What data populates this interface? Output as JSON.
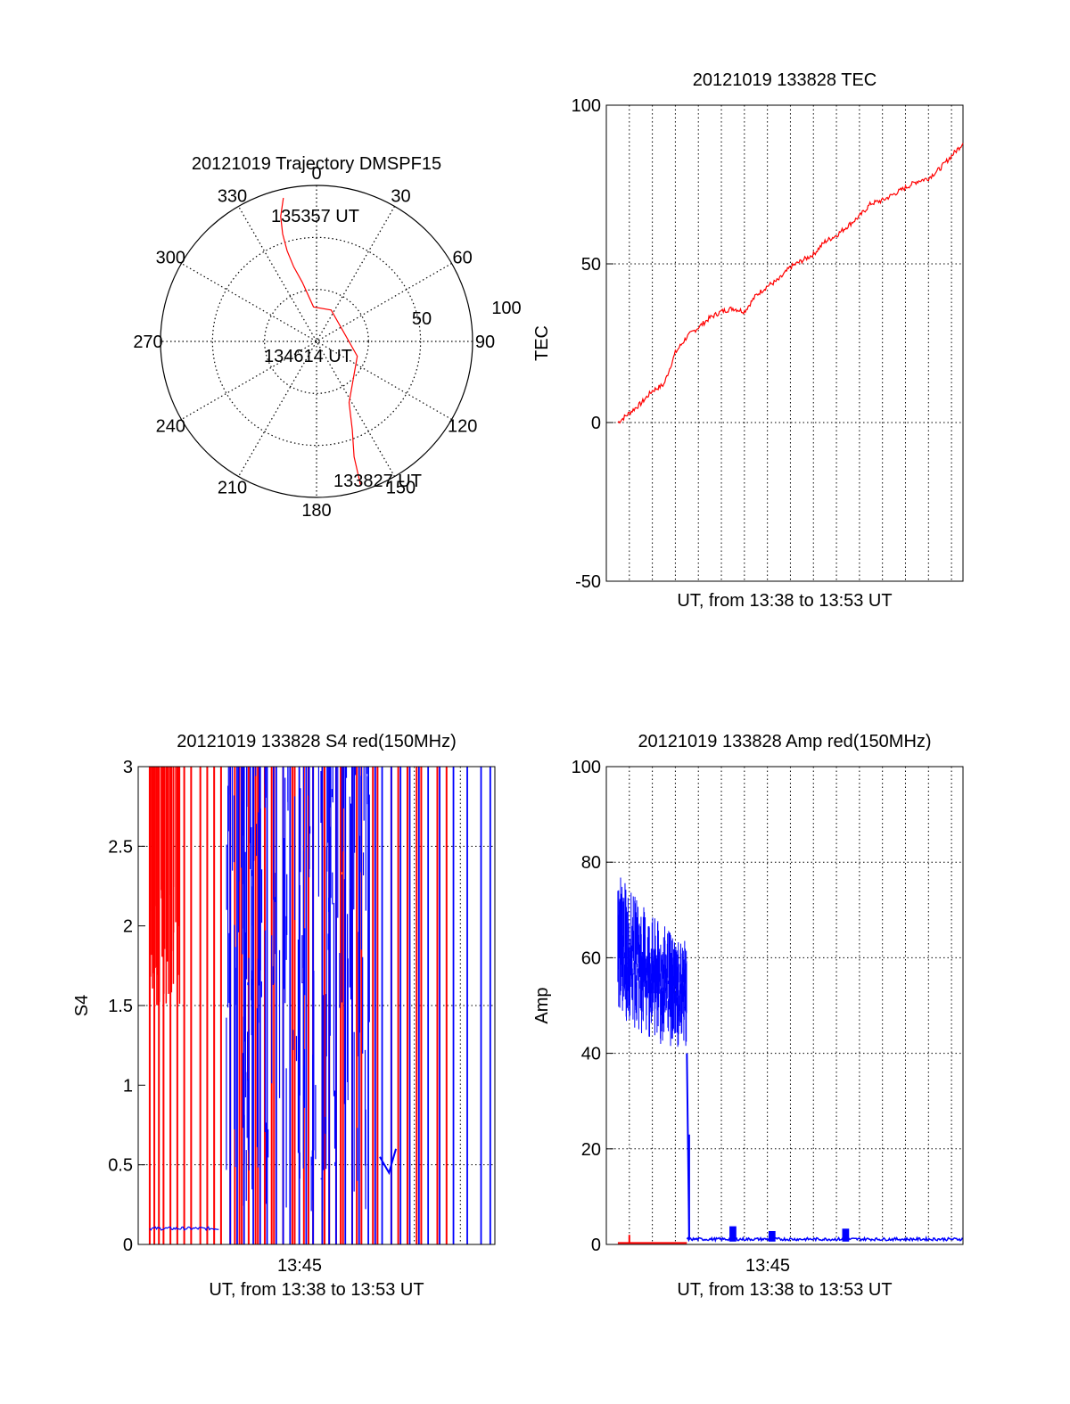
{
  "colors": {
    "red": "#ff0000",
    "blue": "#0000ff",
    "axis": "#000000",
    "grid": "#000000"
  },
  "chart_data": [
    {
      "id": "trajectory",
      "type": "polar",
      "title": "20121019 Trajectory DMSPF15",
      "azimuth_labels": [
        "0",
        "30",
        "60",
        "90",
        "120",
        "150",
        "180",
        "210",
        "240",
        "270",
        "300",
        "330"
      ],
      "radial_labels": [
        "50",
        "100"
      ],
      "zenith_ticks": [
        30,
        60
      ],
      "series": [
        {
          "color": "red",
          "points": [
            [
              -13,
              85
            ],
            [
              -16,
              75
            ],
            [
              -17.5,
              65
            ],
            [
              -18,
              55
            ],
            [
              -17,
              45
            ],
            [
              -13.5,
              35
            ],
            [
              -5,
              20
            ],
            [
              25,
              20
            ],
            [
              110,
              25
            ],
            [
              152,
              40
            ],
            [
              158,
              55
            ],
            [
              162,
              70
            ],
            [
              163,
              87
            ]
          ]
        }
      ],
      "annotations": [
        {
          "text": "135357 UT",
          "az": -11,
          "zen": 84
        },
        {
          "text": "134614 UT",
          "az": 175,
          "zen": 3
        },
        {
          "text": "133827 UT",
          "az": 160,
          "zen": 91
        }
      ]
    },
    {
      "id": "tec",
      "type": "line",
      "title": "20121019 133828 TEC",
      "xlabel": "UT, from 13:38 to 13:53 UT",
      "ylabel": "TEC",
      "xlim": [
        0,
        15.5
      ],
      "ylim": [
        -50,
        100
      ],
      "yticks": [
        -50,
        0,
        50,
        100
      ],
      "grid_x": [
        1,
        2,
        3,
        4,
        5,
        6,
        7,
        8,
        9,
        10,
        11,
        12,
        13,
        14,
        15
      ],
      "grid_y": [
        0,
        50
      ],
      "series": [
        {
          "color": "red",
          "x": [
            0.5,
            1.0,
            1.5,
            2.0,
            2.5,
            3.0,
            3.5,
            4.0,
            4.5,
            5.0,
            5.5,
            6.0,
            6.5,
            7.0,
            7.5,
            8.0,
            8.5,
            9.0,
            9.5,
            10.0,
            10.5,
            11.0,
            11.5,
            12.0,
            12.5,
            13.0,
            13.5,
            14.0,
            14.5,
            15.0,
            15.5
          ],
          "y": [
            0,
            3,
            6,
            10,
            12,
            22,
            27,
            30,
            33,
            35,
            36,
            35,
            40,
            43,
            45,
            49,
            51,
            53,
            57,
            59,
            62,
            65,
            69,
            70,
            72,
            74,
            76,
            77,
            80,
            84,
            88
          ]
        }
      ]
    },
    {
      "id": "s4",
      "type": "line",
      "title": "20121019 133828 S4 red(150MHz)",
      "xlabel": "UT, from 13:38 to 13:53 UT",
      "ylabel": "S4",
      "xlim": [
        0,
        15.5
      ],
      "ylim": [
        0,
        3
      ],
      "yticks": [
        "0",
        "0.5",
        "1",
        "1.5",
        "2",
        "2.5",
        "3"
      ],
      "xtick_labels": [
        {
          "x": 7,
          "label": "13:45"
        }
      ],
      "grid_y": [
        0.5,
        1.5,
        2.5
      ],
      "grid_x": [
        2,
        4,
        6,
        8,
        10,
        12,
        14
      ],
      "series": [
        {
          "name": "",
          "color": "blue",
          "base": {
            "x": [
              0.5,
              3.5
            ],
            "y": [
              0.1,
              0.1
            ]
          },
          "spikes_x": [
            4.0,
            4.3,
            4.6,
            5.0,
            5.3,
            5.6,
            6.0,
            6.3,
            6.6,
            7.0,
            7.3,
            7.6,
            8.0,
            8.3,
            8.6,
            9.0,
            9.3,
            9.6,
            10.0,
            10.3,
            10.6,
            11.0,
            11.4,
            11.8,
            12.2,
            12.6,
            13.1,
            13.7,
            14.3,
            14.9,
            15.3
          ],
          "blob": {
            "x": [
              3.8,
              10.1
            ],
            "y": [
              0.2,
              3
            ]
          }
        },
        {
          "name": "",
          "color": "red",
          "spikes_x": [
            0.5,
            0.7,
            0.9,
            1.1,
            1.4,
            1.7,
            2.0,
            2.3,
            2.7,
            3.0,
            3.3,
            3.6,
            4.0,
            4.2,
            4.5,
            4.8,
            5.1,
            5.5,
            5.9,
            6.3,
            6.8,
            7.2,
            7.6,
            8.0,
            8.3,
            8.6,
            8.9,
            9.3,
            9.7,
            10.2,
            11.0,
            11.7,
            12.3,
            13.0,
            13.4
          ],
          "dense": {
            "x": [
              0.5,
              1.8
            ],
            "y": [
              1.5,
              3
            ]
          }
        }
      ]
    },
    {
      "id": "amp",
      "type": "line",
      "title": "20121019 133828 Amp red(150MHz)",
      "xlabel": "UT, from 13:38 to 13:53 UT",
      "ylabel": "Amp",
      "xlim": [
        0,
        15.5
      ],
      "ylim": [
        0,
        100
      ],
      "yticks": [
        0,
        20,
        40,
        60,
        80,
        100
      ],
      "xtick_labels": [
        {
          "x": 7,
          "label": "13:45"
        }
      ],
      "grid_x": [
        1,
        2,
        3,
        4,
        5,
        6,
        7,
        8,
        9,
        10,
        11,
        12,
        13,
        14,
        15
      ],
      "grid_y": [
        20,
        40,
        60,
        80
      ],
      "series": [
        {
          "color": "blue",
          "envelope_x": [
            0.5,
            1.0,
            1.5,
            2.0,
            2.5,
            3.0,
            3.5
          ],
          "upper": [
            82,
            78,
            75,
            72,
            70,
            68,
            66
          ],
          "lower": [
            45,
            42,
            40,
            40,
            38,
            38,
            38
          ],
          "tail": {
            "x": [
              3.5,
              15.5
            ],
            "y": 0.8
          },
          "bumps": [
            [
              5.5,
              3
            ],
            [
              7.2,
              2
            ],
            [
              10.4,
              2.5
            ]
          ]
        },
        {
          "color": "red",
          "x": [
            0.5,
            3.5
          ],
          "y": 0.3
        }
      ]
    }
  ]
}
